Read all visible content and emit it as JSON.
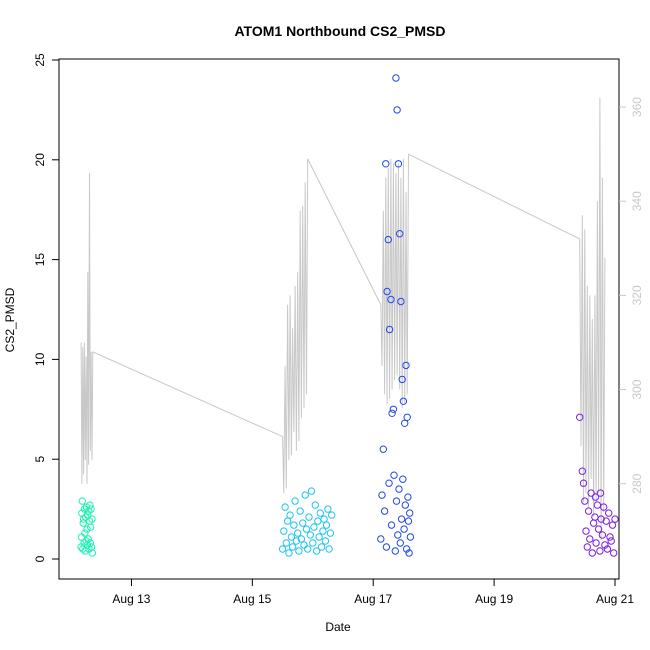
{
  "chart_data": {
    "type": "scatter",
    "title": "ATOM1 Northbound CS2_PMSD",
    "xlabel": "Date",
    "ylabel": "CS2_PMSD",
    "x_unit": "days",
    "x_range": [
      "2020-08-12T00:00",
      "2020-08-21T00:00"
    ],
    "x_ticks": [
      {
        "x": "2020-08-13T00:00",
        "label": "Aug 13"
      },
      {
        "x": "2020-08-15T00:00",
        "label": "Aug 15"
      },
      {
        "x": "2020-08-17T00:00",
        "label": "Aug 17"
      },
      {
        "x": "2020-08-19T00:00",
        "label": "Aug 19"
      },
      {
        "x": "2020-08-21T00:00",
        "label": "Aug 21"
      }
    ],
    "ylim": [
      0,
      25
    ],
    "y_ticks": [
      0,
      5,
      10,
      15,
      20,
      25
    ],
    "y2lim": [
      264,
      370
    ],
    "y2_ticks": [
      280,
      300,
      320,
      340,
      360
    ],
    "grid": false,
    "series": [
      {
        "kind": "points",
        "color": "#1ff2b4",
        "points": [
          [
            "2020-08-12T04:00",
            0.6
          ],
          [
            "2020-08-12T04:10",
            1.1
          ],
          [
            "2020-08-12T04:20",
            2.3
          ],
          [
            "2020-08-12T04:30",
            2.9
          ],
          [
            "2020-08-12T04:40",
            0.5
          ],
          [
            "2020-08-12T04:50",
            1.8
          ],
          [
            "2020-08-12T05:00",
            2.0
          ],
          [
            "2020-08-12T05:10",
            0.8
          ],
          [
            "2020-08-12T05:20",
            2.5
          ],
          [
            "2020-08-12T05:30",
            1.3
          ],
          [
            "2020-08-12T05:40",
            0.4
          ],
          [
            "2020-08-12T05:50",
            2.1
          ],
          [
            "2020-08-12T06:00",
            0.9
          ],
          [
            "2020-08-12T06:10",
            2.6
          ],
          [
            "2020-08-12T06:20",
            1.5
          ],
          [
            "2020-08-12T06:30",
            0.7
          ],
          [
            "2020-08-12T06:40",
            2.2
          ],
          [
            "2020-08-12T06:50",
            1.0
          ],
          [
            "2020-08-12T07:00",
            2.4
          ],
          [
            "2020-08-12T07:10",
            0.5
          ],
          [
            "2020-08-12T07:20",
            1.9
          ],
          [
            "2020-08-12T07:30",
            2.7
          ],
          [
            "2020-08-12T07:40",
            0.8
          ],
          [
            "2020-08-12T07:50",
            1.6
          ],
          [
            "2020-08-12T08:00",
            2.5
          ],
          [
            "2020-08-12T08:10",
            0.6
          ],
          [
            "2020-08-12T08:20",
            2.0
          ],
          [
            "2020-08-12T08:30",
            0.3
          ]
        ]
      },
      {
        "kind": "points",
        "color": "#1ec5f2",
        "points": [
          [
            "2020-08-15T12:00",
            0.5
          ],
          [
            "2020-08-15T12:30",
            1.4
          ],
          [
            "2020-08-15T13:00",
            2.6
          ],
          [
            "2020-08-15T13:30",
            0.8
          ],
          [
            "2020-08-15T14:00",
            1.9
          ],
          [
            "2020-08-15T14:30",
            0.3
          ],
          [
            "2020-08-15T15:00",
            2.2
          ],
          [
            "2020-08-15T15:30",
            1.1
          ],
          [
            "2020-08-15T16:00",
            0.6
          ],
          [
            "2020-08-15T16:30",
            1.7
          ],
          [
            "2020-08-15T17:00",
            2.9
          ],
          [
            "2020-08-15T17:30",
            0.9
          ],
          [
            "2020-08-15T18:00",
            1.3
          ],
          [
            "2020-08-15T18:30",
            0.4
          ],
          [
            "2020-08-15T19:00",
            2.4
          ],
          [
            "2020-08-15T19:30",
            1.0
          ],
          [
            "2020-08-15T20:00",
            1.8
          ],
          [
            "2020-08-15T20:30",
            0.7
          ],
          [
            "2020-08-15T21:00",
            3.2
          ],
          [
            "2020-08-15T21:30",
            1.5
          ],
          [
            "2020-08-15T22:00",
            0.5
          ],
          [
            "2020-08-15T22:30",
            2.1
          ],
          [
            "2020-08-15T23:00",
            1.2
          ],
          [
            "2020-08-15T23:30",
            3.4
          ],
          [
            "2020-08-16T00:00",
            0.8
          ],
          [
            "2020-08-16T00:30",
            1.6
          ],
          [
            "2020-08-16T01:00",
            2.7
          ],
          [
            "2020-08-16T01:30",
            0.4
          ],
          [
            "2020-08-16T02:00",
            1.9
          ],
          [
            "2020-08-16T02:30",
            1.1
          ],
          [
            "2020-08-16T03:00",
            2.3
          ],
          [
            "2020-08-16T03:30",
            0.6
          ],
          [
            "2020-08-16T04:00",
            1.4
          ],
          [
            "2020-08-16T04:30",
            2.0
          ],
          [
            "2020-08-16T05:00",
            0.9
          ],
          [
            "2020-08-16T05:30",
            1.7
          ],
          [
            "2020-08-16T06:00",
            2.5
          ],
          [
            "2020-08-16T06:30",
            0.5
          ],
          [
            "2020-08-16T07:00",
            1.3
          ],
          [
            "2020-08-16T07:30",
            2.2
          ]
        ]
      },
      {
        "kind": "points",
        "color": "#2347e8",
        "points": [
          [
            "2020-08-17T04:00",
            5.5
          ],
          [
            "2020-08-17T05:00",
            19.8
          ],
          [
            "2020-08-17T05:30",
            13.4
          ],
          [
            "2020-08-17T06:00",
            16.0
          ],
          [
            "2020-08-17T06:30",
            11.5
          ],
          [
            "2020-08-17T07:00",
            13.0
          ],
          [
            "2020-08-17T07:30",
            7.3
          ],
          [
            "2020-08-17T08:00",
            7.5
          ],
          [
            "2020-08-17T09:00",
            24.1
          ],
          [
            "2020-08-17T09:30",
            22.5
          ],
          [
            "2020-08-17T10:00",
            19.8
          ],
          [
            "2020-08-17T10:30",
            16.3
          ],
          [
            "2020-08-17T11:00",
            12.9
          ],
          [
            "2020-08-17T11:30",
            9.0
          ],
          [
            "2020-08-17T12:00",
            7.9
          ],
          [
            "2020-08-17T12:30",
            6.8
          ],
          [
            "2020-08-17T13:00",
            9.7
          ],
          [
            "2020-08-17T13:30",
            7.1
          ],
          [
            "2020-08-17T03:00",
            1.0
          ],
          [
            "2020-08-17T03:30",
            3.2
          ],
          [
            "2020-08-17T04:30",
            2.4
          ],
          [
            "2020-08-17T05:15",
            0.6
          ],
          [
            "2020-08-17T06:15",
            3.8
          ],
          [
            "2020-08-17T07:15",
            1.7
          ],
          [
            "2020-08-17T08:15",
            4.2
          ],
          [
            "2020-08-17T08:45",
            0.4
          ],
          [
            "2020-08-17T09:15",
            2.9
          ],
          [
            "2020-08-17T09:45",
            1.2
          ],
          [
            "2020-08-17T10:15",
            3.5
          ],
          [
            "2020-08-17T10:45",
            0.8
          ],
          [
            "2020-08-17T11:15",
            2.0
          ],
          [
            "2020-08-17T11:45",
            4.0
          ],
          [
            "2020-08-17T12:15",
            1.5
          ],
          [
            "2020-08-17T12:45",
            2.7
          ],
          [
            "2020-08-17T13:15",
            0.5
          ],
          [
            "2020-08-17T13:45",
            3.1
          ],
          [
            "2020-08-17T14:00",
            1.9
          ],
          [
            "2020-08-17T14:15",
            0.3
          ],
          [
            "2020-08-17T14:30",
            2.3
          ],
          [
            "2020-08-17T14:45",
            1.1
          ]
        ]
      },
      {
        "kind": "points",
        "color": "#7a1ee6",
        "points": [
          [
            "2020-08-20T10:00",
            7.1
          ],
          [
            "2020-08-20T11:00",
            4.4
          ],
          [
            "2020-08-20T11:30",
            3.8
          ],
          [
            "2020-08-20T12:00",
            2.9
          ],
          [
            "2020-08-20T12:30",
            1.4
          ],
          [
            "2020-08-20T13:00",
            0.6
          ],
          [
            "2020-08-20T13:30",
            2.4
          ],
          [
            "2020-08-20T14:00",
            1.0
          ],
          [
            "2020-08-20T14:30",
            3.3
          ],
          [
            "2020-08-20T15:00",
            0.3
          ],
          [
            "2020-08-20T15:30",
            1.8
          ],
          [
            "2020-08-20T16:00",
            2.1
          ],
          [
            "2020-08-20T16:30",
            0.8
          ],
          [
            "2020-08-20T17:00",
            2.7
          ],
          [
            "2020-08-20T17:30",
            1.5
          ],
          [
            "2020-08-20T18:00",
            0.4
          ],
          [
            "2020-08-20T18:30",
            2.0
          ],
          [
            "2020-08-20T19:00",
            1.2
          ],
          [
            "2020-08-20T19:30",
            2.6
          ],
          [
            "2020-08-20T20:00",
            0.7
          ],
          [
            "2020-08-20T20:30",
            1.9
          ],
          [
            "2020-08-20T21:00",
            0.5
          ],
          [
            "2020-08-20T21:30",
            2.3
          ],
          [
            "2020-08-20T22:00",
            1.1
          ],
          [
            "2020-08-20T22:30",
            0.9
          ],
          [
            "2020-08-20T23:00",
            1.7
          ],
          [
            "2020-08-20T23:30",
            0.3
          ],
          [
            "2020-08-21T00:00",
            2.0
          ],
          [
            "2020-08-20T16:15",
            3.1
          ],
          [
            "2020-08-20T18:15",
            3.3
          ]
        ]
      },
      {
        "kind": "line",
        "axis": "right",
        "color": "#c8c8c8",
        "points": [
          [
            "2020-08-12T04:00",
            310
          ],
          [
            "2020-08-12T04:20",
            280
          ],
          [
            "2020-08-12T04:40",
            309
          ],
          [
            "2020-08-12T05:00",
            282
          ],
          [
            "2020-08-12T05:20",
            310
          ],
          [
            "2020-08-12T05:40",
            285
          ],
          [
            "2020-08-12T06:00",
            307
          ],
          [
            "2020-08-12T06:20",
            280
          ],
          [
            "2020-08-12T06:40",
            325
          ],
          [
            "2020-08-12T07:00",
            284
          ],
          [
            "2020-08-12T07:20",
            346
          ],
          [
            "2020-08-12T07:40",
            287
          ],
          [
            "2020-08-12T08:00",
            308
          ],
          [
            "2020-08-12T08:20",
            285
          ],
          [
            "2020-08-12T08:40",
            308
          ],
          [
            "2020-08-15T12:00",
            290
          ],
          [
            "2020-08-15T12:30",
            278
          ],
          [
            "2020-08-15T13:00",
            305
          ],
          [
            "2020-08-15T13:30",
            279
          ],
          [
            "2020-08-15T14:00",
            318
          ],
          [
            "2020-08-15T14:30",
            285
          ],
          [
            "2020-08-15T15:00",
            320
          ],
          [
            "2020-08-15T15:30",
            286
          ],
          [
            "2020-08-15T16:00",
            313
          ],
          [
            "2020-08-15T16:30",
            291
          ],
          [
            "2020-08-15T17:00",
            322
          ],
          [
            "2020-08-15T17:30",
            287
          ],
          [
            "2020-08-15T18:00",
            325
          ],
          [
            "2020-08-15T18:30",
            289
          ],
          [
            "2020-08-15T19:00",
            338
          ],
          [
            "2020-08-15T19:30",
            294
          ],
          [
            "2020-08-15T20:00",
            339
          ],
          [
            "2020-08-15T20:30",
            296
          ],
          [
            "2020-08-15T21:00",
            344
          ],
          [
            "2020-08-15T21:30",
            299
          ],
          [
            "2020-08-15T22:00",
            349
          ],
          [
            "2020-08-17T03:00",
            318
          ],
          [
            "2020-08-17T03:30",
            305
          ],
          [
            "2020-08-17T04:00",
            338
          ],
          [
            "2020-08-17T04:30",
            299
          ],
          [
            "2020-08-17T05:00",
            345
          ],
          [
            "2020-08-17T05:30",
            297
          ],
          [
            "2020-08-17T06:00",
            347
          ],
          [
            "2020-08-17T06:30",
            298
          ],
          [
            "2020-08-17T07:00",
            349
          ],
          [
            "2020-08-17T07:30",
            300
          ],
          [
            "2020-08-17T08:00",
            348
          ],
          [
            "2020-08-17T08:30",
            302
          ],
          [
            "2020-08-17T09:00",
            346
          ],
          [
            "2020-08-17T09:30",
            303
          ],
          [
            "2020-08-17T10:00",
            348
          ],
          [
            "2020-08-17T10:30",
            300
          ],
          [
            "2020-08-17T11:00",
            345
          ],
          [
            "2020-08-17T11:30",
            296
          ],
          [
            "2020-08-17T12:00",
            349
          ],
          [
            "2020-08-17T12:30",
            297
          ],
          [
            "2020-08-17T13:00",
            342
          ],
          [
            "2020-08-17T13:30",
            299
          ],
          [
            "2020-08-17T14:00",
            350
          ],
          [
            "2020-08-20T10:00",
            332
          ],
          [
            "2020-08-20T10:30",
            288
          ],
          [
            "2020-08-20T11:00",
            337
          ],
          [
            "2020-08-20T11:30",
            276
          ],
          [
            "2020-08-20T12:00",
            334
          ],
          [
            "2020-08-20T12:30",
            278
          ],
          [
            "2020-08-20T13:00",
            322
          ],
          [
            "2020-08-20T13:30",
            275
          ],
          [
            "2020-08-20T14:00",
            320
          ],
          [
            "2020-08-20T14:30",
            281
          ],
          [
            "2020-08-20T15:00",
            315
          ],
          [
            "2020-08-20T15:30",
            273
          ],
          [
            "2020-08-20T16:00",
            320
          ],
          [
            "2020-08-20T16:30",
            276
          ],
          [
            "2020-08-20T17:00",
            340
          ],
          [
            "2020-08-20T17:30",
            278
          ],
          [
            "2020-08-20T18:00",
            362
          ],
          [
            "2020-08-20T18:30",
            268
          ],
          [
            "2020-08-20T19:00",
            345
          ],
          [
            "2020-08-20T19:30",
            274
          ],
          [
            "2020-08-20T20:00",
            328
          ]
        ]
      }
    ]
  },
  "colors": {
    "axis": "#000000",
    "right_axis": "#c8c8c8",
    "background": "#ffffff"
  }
}
